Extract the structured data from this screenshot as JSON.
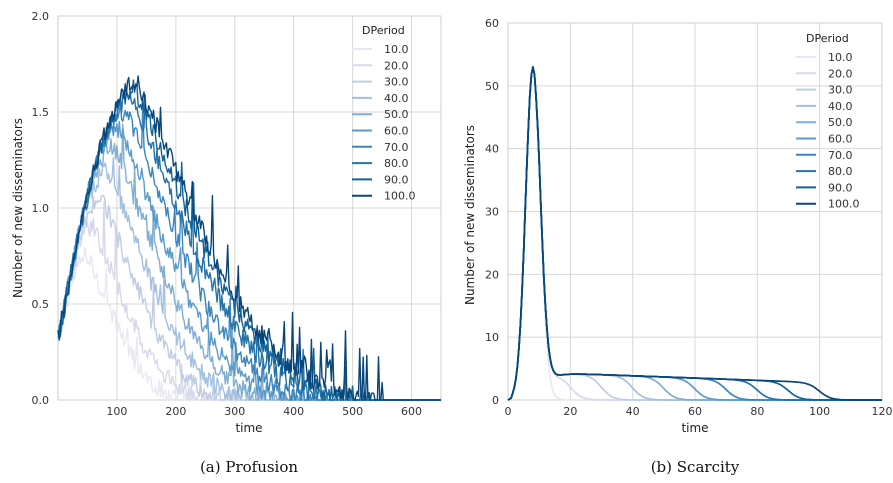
{
  "colors": [
    "#e7e8f2",
    "#d6d8ea",
    "#c0cce3",
    "#a3c0df",
    "#80aed4",
    "#5b9bcb",
    "#3a86bd",
    "#2473aa",
    "#12629a",
    "#08457a"
  ],
  "chart_data": [
    {
      "id": "a",
      "type": "line",
      "caption": "(a) Profusion",
      "xlabel": "time",
      "ylabel": "Number of new disseminators",
      "xlim": [
        0,
        650
      ],
      "ylim": [
        0,
        2.0
      ],
      "xticks": [
        100,
        200,
        300,
        400,
        500,
        600
      ],
      "yticks": [
        0.0,
        0.5,
        1.0,
        1.5,
        2.0
      ],
      "ytick_labels": [
        "0.0",
        "0.5",
        "1.0",
        "1.5",
        "2.0"
      ],
      "grid": true,
      "legend": {
        "title": "DPeriod",
        "placement": "top-right",
        "entries": [
          "10.0",
          "20.0",
          "30.0",
          "40.0",
          "50.0",
          "60.0",
          "70.0",
          "80.0",
          "90.0",
          "100.0"
        ]
      },
      "series": [
        {
          "name": "10.0",
          "peak_time": 50,
          "peak_value": 0.75,
          "end_time": 230
        },
        {
          "name": "20.0",
          "peak_time": 60,
          "peak_value": 0.9,
          "end_time": 270
        },
        {
          "name": "30.0",
          "peak_time": 75,
          "peak_value": 1.05,
          "end_time": 310
        },
        {
          "name": "40.0",
          "peak_time": 85,
          "peak_value": 1.2,
          "end_time": 350
        },
        {
          "name": "50.0",
          "peak_time": 95,
          "peak_value": 1.32,
          "end_time": 390
        },
        {
          "name": "60.0",
          "peak_time": 105,
          "peak_value": 1.42,
          "end_time": 420
        },
        {
          "name": "70.0",
          "peak_time": 115,
          "peak_value": 1.5,
          "end_time": 460
        },
        {
          "name": "80.0",
          "peak_time": 125,
          "peak_value": 1.57,
          "end_time": 500
        },
        {
          "name": "90.0",
          "peak_time": 130,
          "peak_value": 1.62,
          "end_time": 530
        },
        {
          "name": "100.0",
          "peak_time": 135,
          "peak_value": 1.65,
          "end_time": 550
        }
      ]
    },
    {
      "id": "b",
      "type": "line",
      "caption": "(b) Scarcity",
      "xlabel": "time",
      "ylabel": "Number of new disseminators",
      "xlim": [
        0,
        120
      ],
      "ylim": [
        0,
        60
      ],
      "xticks": [
        0,
        20,
        40,
        60,
        80,
        100,
        120
      ],
      "yticks": [
        0,
        10,
        20,
        30,
        40,
        50,
        60
      ],
      "ytick_labels": [
        "0",
        "10",
        "20",
        "30",
        "40",
        "50",
        "60"
      ],
      "grid": true,
      "legend": {
        "title": "DPeriod",
        "placement": "top-right",
        "entries": [
          "10.0",
          "20.0",
          "30.0",
          "40.0",
          "50.0",
          "60.0",
          "70.0",
          "80.0",
          "90.0",
          "100.0"
        ]
      },
      "series": [
        {
          "name": "10.0",
          "peak_time": 8,
          "peak_value": 53,
          "plateau_end": 10
        },
        {
          "name": "20.0",
          "peak_time": 8,
          "peak_value": 53,
          "plateau_end": 20
        },
        {
          "name": "30.0",
          "peak_time": 8,
          "peak_value": 53,
          "plateau_end": 30
        },
        {
          "name": "40.0",
          "peak_time": 8,
          "peak_value": 53,
          "plateau_end": 40
        },
        {
          "name": "50.0",
          "peak_time": 8,
          "peak_value": 53,
          "plateau_end": 50
        },
        {
          "name": "60.0",
          "peak_time": 8,
          "peak_value": 53,
          "plateau_end": 60
        },
        {
          "name": "70.0",
          "peak_time": 8,
          "peak_value": 53,
          "plateau_end": 70
        },
        {
          "name": "80.0",
          "peak_time": 8,
          "peak_value": 53,
          "plateau_end": 80
        },
        {
          "name": "90.0",
          "peak_time": 8,
          "peak_value": 53,
          "plateau_end": 90
        },
        {
          "name": "100.0",
          "peak_time": 8,
          "peak_value": 53,
          "plateau_end": 100
        }
      ]
    }
  ]
}
